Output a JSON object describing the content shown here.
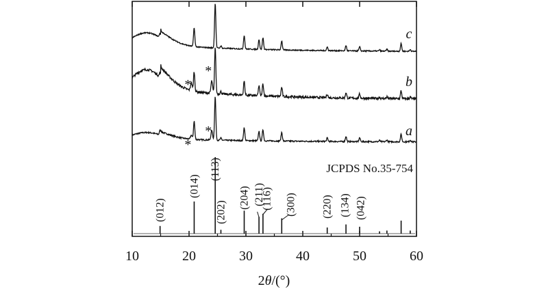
{
  "chart_data": {
    "type": "line",
    "xlabel_prefix": "2",
    "xlabel_theta": "θ",
    "xlabel_suffix": "/(°)",
    "xlim": [
      10,
      60
    ],
    "x_ticks": [
      10,
      20,
      30,
      40,
      50,
      60
    ],
    "reference": {
      "name": "JCPDS No.35-754",
      "peaks": [
        {
          "x": 14.9,
          "h": 0.1,
          "label": "(012)"
        },
        {
          "x": 20.9,
          "h": 0.42,
          "label": "(014)"
        },
        {
          "x": 24.6,
          "h": 1.0,
          "label": "(113)"
        },
        {
          "x": 25.6,
          "h": 0.05,
          "label": "(202)"
        },
        {
          "x": 29.7,
          "h": 0.3,
          "label": "(204)"
        },
        {
          "x": 32.3,
          "h": 0.22,
          "label": "(211)"
        },
        {
          "x": 33.0,
          "h": 0.26,
          "label": "(116)"
        },
        {
          "x": 36.3,
          "h": 0.2,
          "label": "(300)"
        },
        {
          "x": 44.3,
          "h": 0.08,
          "label": "(220)"
        },
        {
          "x": 47.6,
          "h": 0.12,
          "label": "(134)"
        },
        {
          "x": 50.0,
          "h": 0.09,
          "label": "(042)"
        },
        {
          "x": 53.5,
          "h": 0.03,
          "label": ""
        },
        {
          "x": 54.8,
          "h": 0.04,
          "label": ""
        },
        {
          "x": 57.3,
          "h": 0.17,
          "label": ""
        },
        {
          "x": 58.9,
          "h": 0.04,
          "label": ""
        }
      ]
    },
    "series": [
      {
        "name": "a",
        "marked_peaks": [
          20.4,
          24.0
        ],
        "marker": "*"
      },
      {
        "name": "b",
        "marked_peaks": [
          20.4,
          24.0
        ],
        "marker": "*"
      },
      {
        "name": "c",
        "marked_peaks": [],
        "marker": "*"
      }
    ]
  }
}
